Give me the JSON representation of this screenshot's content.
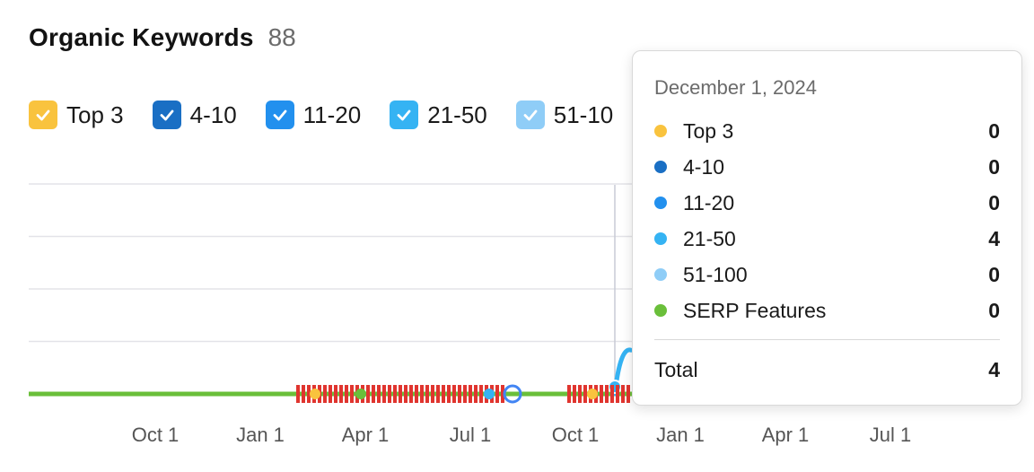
{
  "header": {
    "title": "Organic Keywords",
    "count": "88"
  },
  "legend": [
    {
      "label": "Top 3",
      "color": "#f9c33e",
      "checked": true
    },
    {
      "label": "4-10",
      "color": "#1a6fc4",
      "checked": true
    },
    {
      "label": "11-20",
      "color": "#2290ee",
      "checked": true
    },
    {
      "label": "21-50",
      "color": "#35b3f3",
      "checked": true
    },
    {
      "label": "51-10",
      "color": "#8fcdf7",
      "checked": true
    }
  ],
  "tooltip": {
    "date": "December 1, 2024",
    "rows": [
      {
        "label": "Top 3",
        "value": "0",
        "color": "#f9c33e"
      },
      {
        "label": "4-10",
        "value": "0",
        "color": "#1a6fc4"
      },
      {
        "label": "11-20",
        "value": "0",
        "color": "#2290ee"
      },
      {
        "label": "21-50",
        "value": "4",
        "color": "#35b3f3"
      },
      {
        "label": "51-100",
        "value": "0",
        "color": "#8fcdf7"
      },
      {
        "label": "SERP Features",
        "value": "0",
        "color": "#6abf3a"
      }
    ],
    "total_label": "Total",
    "total_value": "4"
  },
  "chart_data": {
    "type": "line",
    "x_ticks": [
      "Oct 1",
      "Jan 1",
      "Apr 1",
      "Jul 1",
      "Oct 1",
      "Jan 1",
      "Apr 1",
      "Jul 1"
    ],
    "hover_date": "December 1, 2024",
    "series": [
      {
        "name": "SERP Features",
        "color": "#6abf3a",
        "values": [
          0,
          0,
          0,
          0,
          0,
          0,
          0
        ]
      },
      {
        "name": "21-50",
        "color": "#35b3f3",
        "values": [
          0,
          0,
          0,
          0,
          0,
          4,
          0
        ]
      }
    ],
    "grid": true,
    "legend": "top-left"
  }
}
